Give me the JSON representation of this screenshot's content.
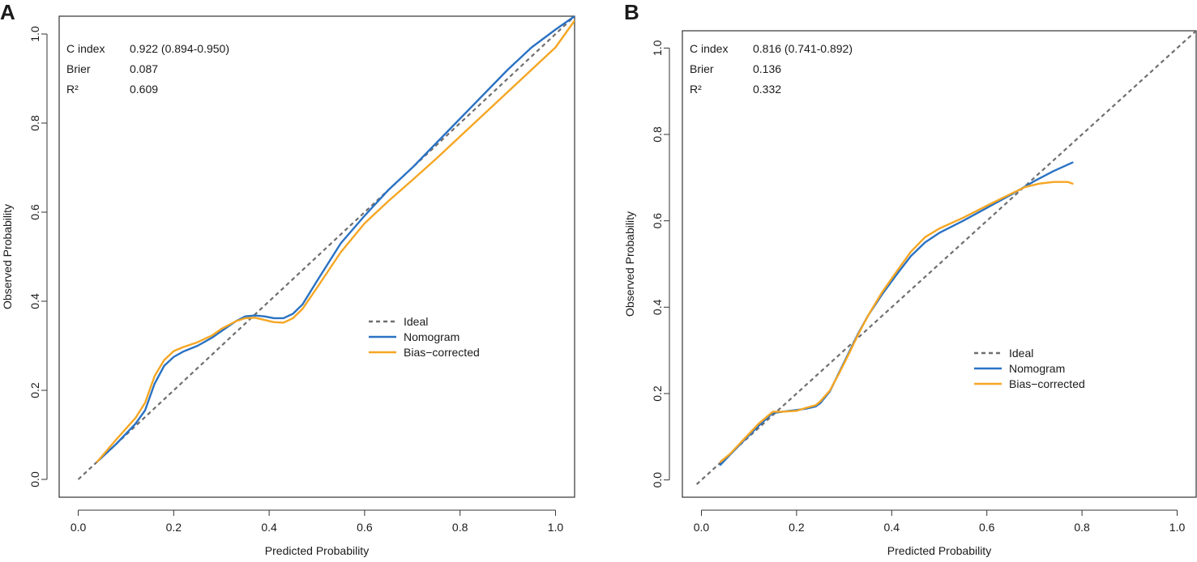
{
  "colors": {
    "ideal": "#6f6f6f",
    "nomogram": "#2a72c3",
    "bias_corrected": "#f5a623",
    "axis": "#333333"
  },
  "chart_data": [
    {
      "type": "line",
      "panel_label": "A",
      "xlabel": "Predicted Probability",
      "ylabel": "Observed  Probability",
      "xlim": [
        -0.04,
        1.04
      ],
      "ylim": [
        -0.04,
        1.04
      ],
      "x_ticks": [
        "0.0",
        "0.2",
        "0.4",
        "0.6",
        "0.8",
        "1.0"
      ],
      "y_ticks": [
        "0.0",
        "0.2",
        "0.4",
        "0.6",
        "0.8",
        "1.0"
      ],
      "stats": [
        {
          "label": "C index",
          "value": "0.922 (0.894-0.950)"
        },
        {
          "label": "Brier",
          "value": "0.087"
        },
        {
          "label": "R²",
          "value": "0.609"
        }
      ],
      "legend": [
        "Ideal",
        "Nomogram",
        "Bias−corrected"
      ],
      "series": [
        {
          "name": "Ideal",
          "style": "dashed",
          "color_key": "ideal",
          "x": [
            0.0,
            1.04
          ],
          "y": [
            0.0,
            1.04
          ]
        },
        {
          "name": "Nomogram",
          "style": "solid",
          "color_key": "nomogram",
          "x": [
            0.04,
            0.08,
            0.12,
            0.14,
            0.16,
            0.18,
            0.2,
            0.22,
            0.25,
            0.28,
            0.3,
            0.33,
            0.35,
            0.37,
            0.39,
            0.41,
            0.43,
            0.45,
            0.47,
            0.5,
            0.55,
            0.6,
            0.65,
            0.7,
            0.75,
            0.8,
            0.85,
            0.9,
            0.95,
            1.0,
            1.04
          ],
          "y": [
            0.04,
            0.08,
            0.125,
            0.155,
            0.215,
            0.255,
            0.275,
            0.287,
            0.3,
            0.318,
            0.333,
            0.355,
            0.366,
            0.368,
            0.366,
            0.362,
            0.362,
            0.372,
            0.393,
            0.445,
            0.53,
            0.592,
            0.65,
            0.7,
            0.755,
            0.81,
            0.865,
            0.92,
            0.97,
            1.01,
            1.04
          ]
        },
        {
          "name": "Bias−corrected",
          "style": "solid",
          "color_key": "bias_corrected",
          "x": [
            0.04,
            0.08,
            0.12,
            0.14,
            0.16,
            0.18,
            0.2,
            0.22,
            0.25,
            0.28,
            0.3,
            0.33,
            0.35,
            0.37,
            0.39,
            0.41,
            0.43,
            0.45,
            0.47,
            0.5,
            0.55,
            0.6,
            0.65,
            0.7,
            0.75,
            0.8,
            0.85,
            0.9,
            0.95,
            1.0,
            1.04
          ],
          "y": [
            0.04,
            0.09,
            0.138,
            0.172,
            0.232,
            0.268,
            0.288,
            0.297,
            0.308,
            0.323,
            0.338,
            0.355,
            0.362,
            0.363,
            0.358,
            0.353,
            0.352,
            0.362,
            0.383,
            0.43,
            0.51,
            0.575,
            0.625,
            0.672,
            0.72,
            0.77,
            0.82,
            0.87,
            0.92,
            0.97,
            1.03
          ]
        }
      ]
    },
    {
      "type": "line",
      "panel_label": "B",
      "xlabel": "Predicted Probability",
      "ylabel": "Observed  Probability",
      "xlim": [
        -0.04,
        1.04
      ],
      "ylim": [
        -0.04,
        1.04
      ],
      "x_ticks": [
        "0.0",
        "0.2",
        "0.4",
        "0.6",
        "0.8",
        "1.0"
      ],
      "y_ticks": [
        "0.0",
        "0.2",
        "0.4",
        "0.6",
        "0.8",
        "1.0"
      ],
      "stats": [
        {
          "label": "C index",
          "value": "0.816 (0.741-0.892)"
        },
        {
          "label": "Brier",
          "value": "0.136"
        },
        {
          "label": "R²",
          "value": "0.332"
        }
      ],
      "legend": [
        "Ideal",
        "Nomogram",
        "Bias−corrected"
      ],
      "series": [
        {
          "name": "Ideal",
          "style": "dashed",
          "color_key": "ideal",
          "x": [
            -0.01,
            1.04
          ],
          "y": [
            -0.01,
            1.04
          ]
        },
        {
          "name": "Nomogram",
          "style": "solid",
          "color_key": "nomogram",
          "x": [
            0.04,
            0.06,
            0.09,
            0.12,
            0.15,
            0.17,
            0.2,
            0.22,
            0.24,
            0.25,
            0.27,
            0.29,
            0.31,
            0.33,
            0.35,
            0.38,
            0.41,
            0.44,
            0.47,
            0.5,
            0.55,
            0.6,
            0.65,
            0.7,
            0.74,
            0.78
          ],
          "y": [
            0.035,
            0.058,
            0.092,
            0.125,
            0.155,
            0.158,
            0.162,
            0.165,
            0.17,
            0.178,
            0.205,
            0.25,
            0.295,
            0.34,
            0.38,
            0.43,
            0.475,
            0.518,
            0.55,
            0.572,
            0.6,
            0.63,
            0.66,
            0.692,
            0.715,
            0.735
          ]
        },
        {
          "name": "Bias−corrected",
          "style": "solid",
          "color_key": "bias_corrected",
          "x": [
            0.04,
            0.06,
            0.09,
            0.12,
            0.15,
            0.17,
            0.2,
            0.22,
            0.24,
            0.25,
            0.27,
            0.29,
            0.31,
            0.33,
            0.35,
            0.38,
            0.41,
            0.44,
            0.47,
            0.5,
            0.55,
            0.6,
            0.65,
            0.68,
            0.71,
            0.74,
            0.77,
            0.78
          ],
          "y": [
            0.042,
            0.06,
            0.095,
            0.13,
            0.158,
            0.158,
            0.16,
            0.167,
            0.173,
            0.182,
            0.207,
            0.248,
            0.292,
            0.338,
            0.38,
            0.435,
            0.482,
            0.528,
            0.562,
            0.582,
            0.607,
            0.635,
            0.662,
            0.678,
            0.686,
            0.69,
            0.69,
            0.686
          ]
        }
      ]
    }
  ]
}
